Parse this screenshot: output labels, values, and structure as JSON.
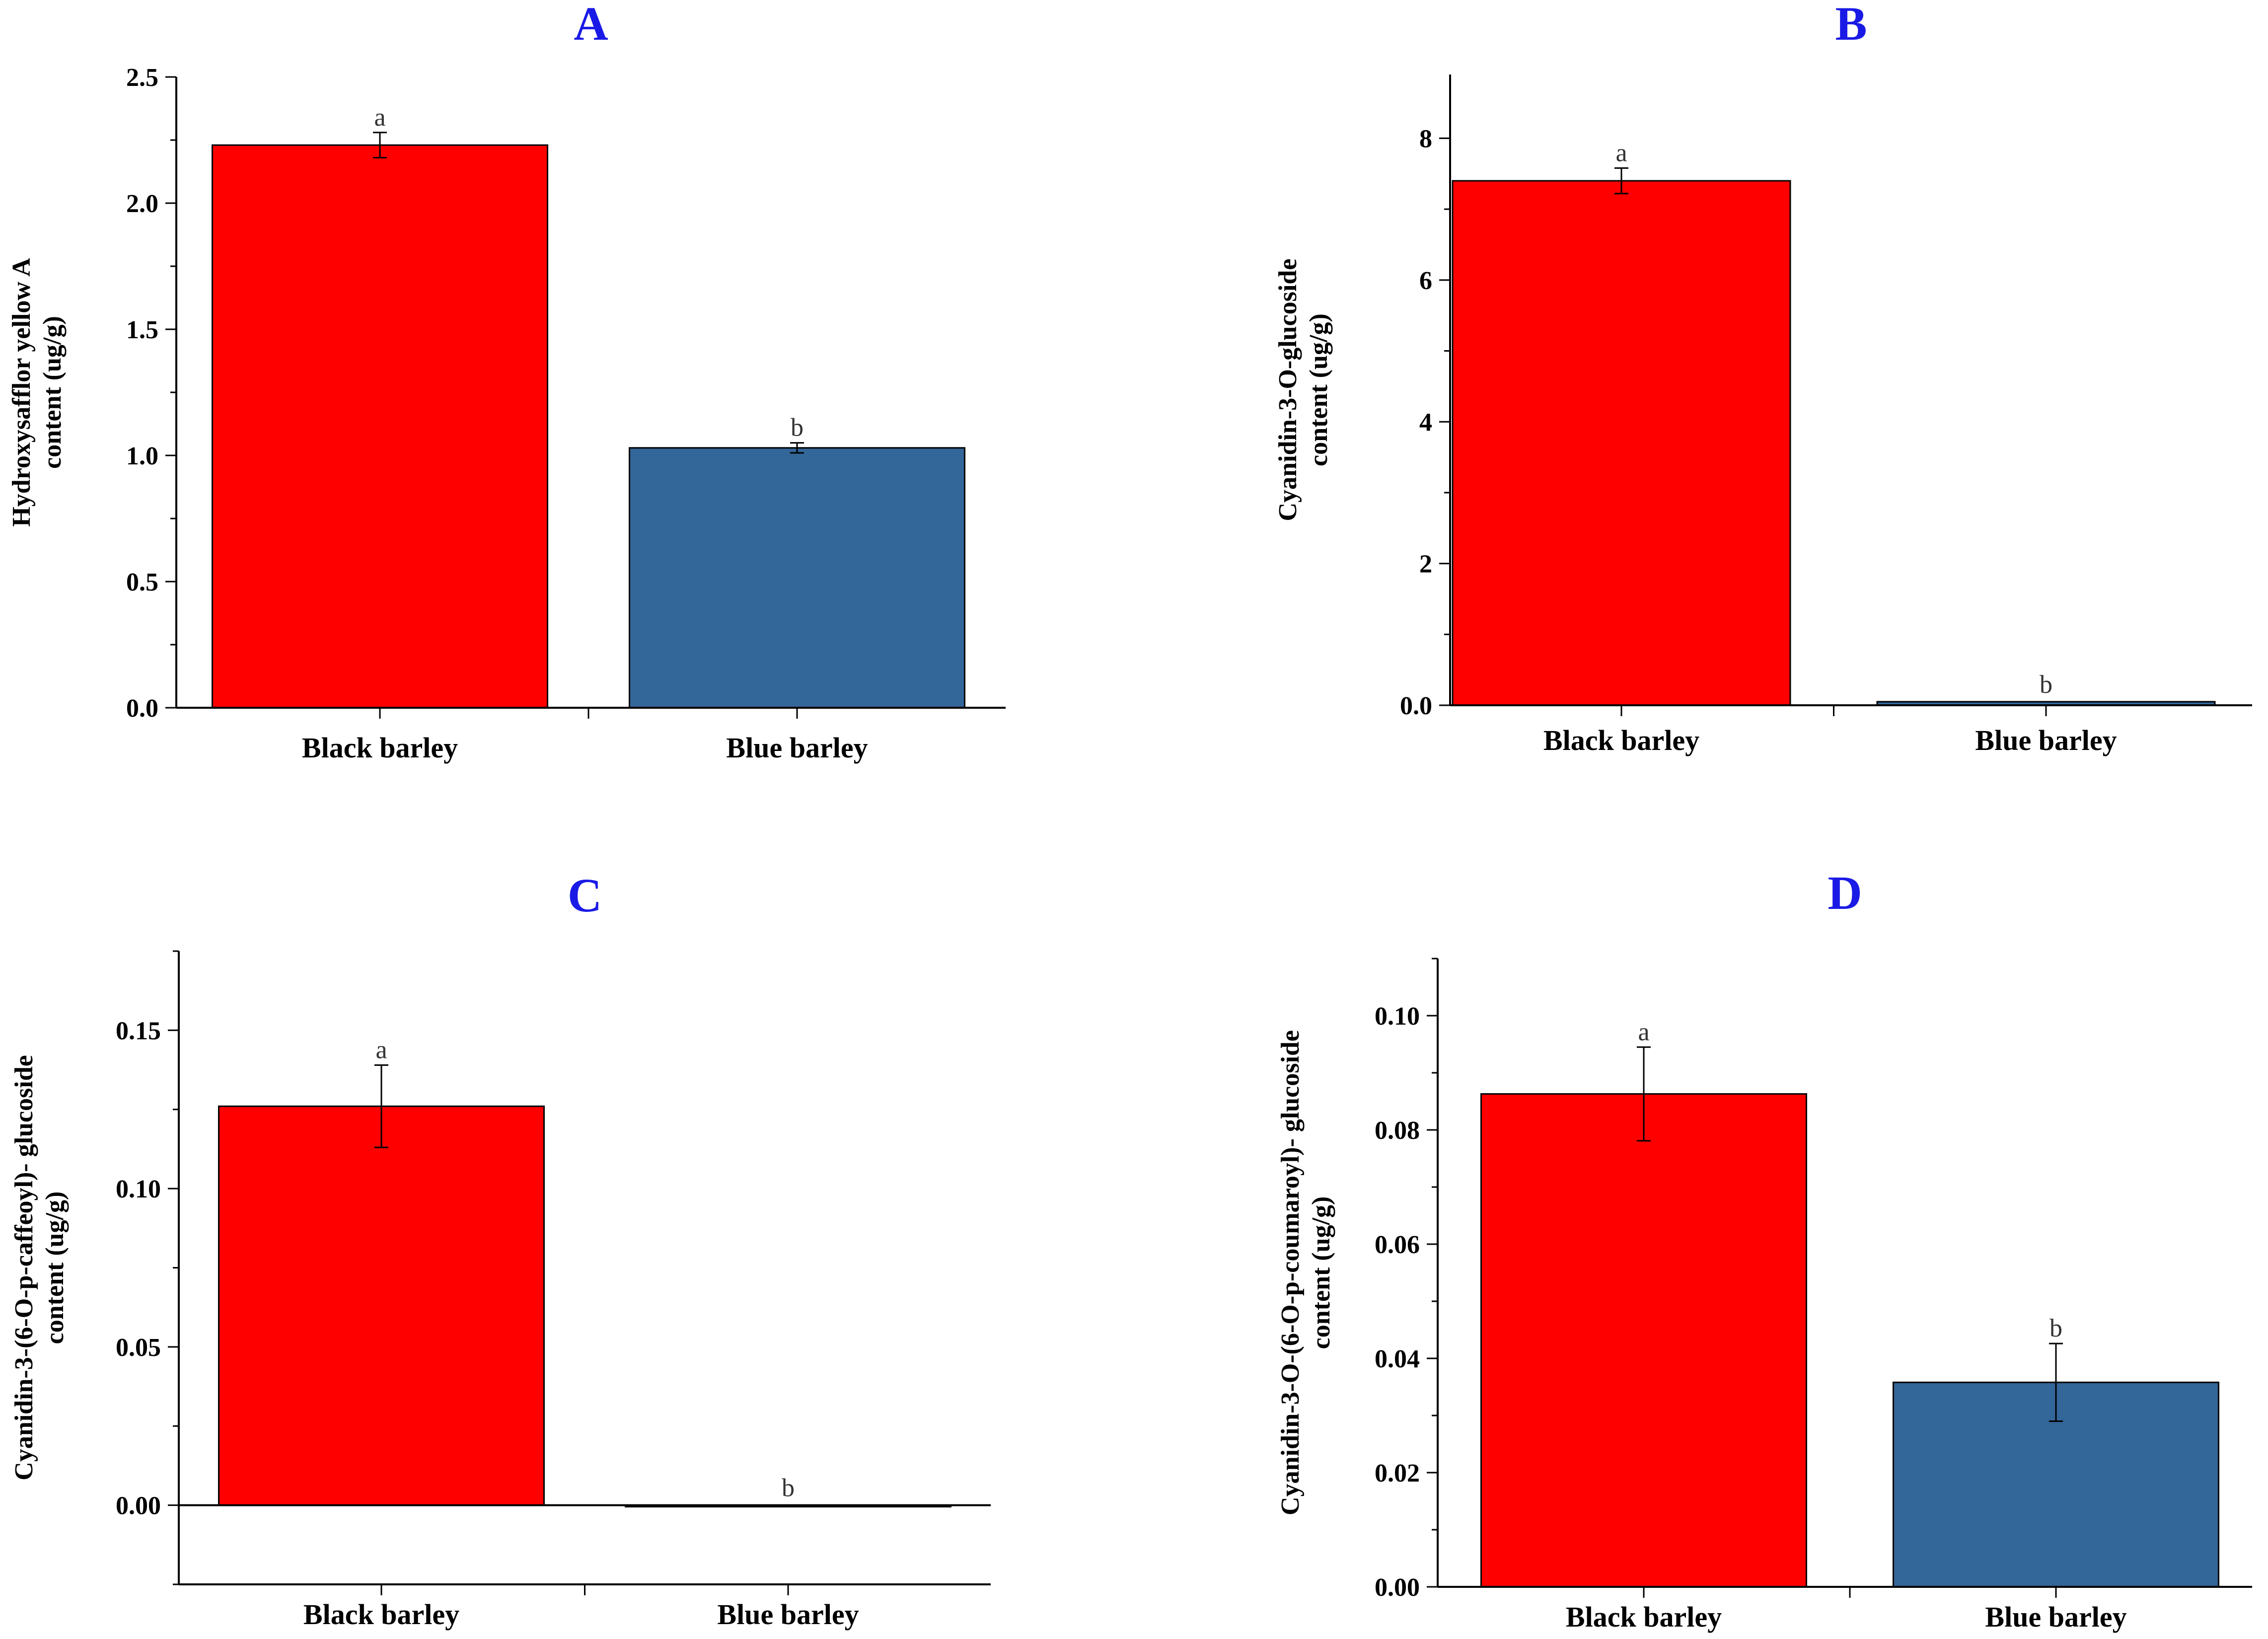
{
  "chart_data": [
    {
      "type": "bar",
      "title": "A",
      "ylabel": [
        "Hydroxysafflor yellow A",
        "content (ug/g)"
      ],
      "categories": [
        "Black barley",
        "Blue barley"
      ],
      "values": [
        2.23,
        1.03
      ],
      "errors": [
        0.05,
        0.02
      ],
      "significance": [
        "a",
        "b"
      ],
      "colors": [
        "#ff0000",
        "#336699"
      ],
      "ylim": [
        0,
        2.5
      ],
      "ticks": [
        "0.0",
        "0.5",
        "1.0",
        "1.5",
        "2.0",
        "2.5"
      ]
    },
    {
      "type": "bar",
      "title": "B",
      "ylabel": [
        "Cyanidin-3-O-glucoside",
        "content (ug/g)"
      ],
      "categories": [
        "Black barley",
        "Blue barley"
      ],
      "values": [
        7.4,
        0.05
      ],
      "errors": [
        0.18,
        0.0
      ],
      "significance": [
        "a",
        "b"
      ],
      "colors": [
        "#ff0000",
        "#336699"
      ],
      "ylim": [
        0,
        8.9
      ],
      "ticks": [
        "0.0",
        "2",
        "4",
        "6",
        "8"
      ]
    },
    {
      "type": "bar",
      "title": "C",
      "ylabel": [
        "Cyanidin-3-(6-O-p-caffeoyl)- glucoside",
        "content (ug/g)"
      ],
      "categories": [
        "Black barley",
        "Blue barley"
      ],
      "values": [
        0.126,
        0.0
      ],
      "errors": [
        0.013,
        0.0
      ],
      "significance": [
        "a",
        "b"
      ],
      "colors": [
        "#ff0000",
        "#336699"
      ],
      "ylim": [
        -0.025,
        0.175
      ],
      "ticks": [
        "0.00",
        "0.05",
        "0.10",
        "0.15"
      ]
    },
    {
      "type": "bar",
      "title": "D",
      "ylabel": [
        "Cyanidin-3-O-(6-O-p-coumaroyl)- glucoside",
        "content (ug/g)"
      ],
      "categories": [
        "Black barley",
        "Blue barley"
      ],
      "values": [
        0.0863,
        0.0358
      ],
      "errors": [
        0.0082,
        0.0068
      ],
      "significance": [
        "a",
        "b"
      ],
      "colors": [
        "#ff0000",
        "#336699"
      ],
      "ylim": [
        0,
        0.11
      ],
      "ticks": [
        "0.00",
        "0.02",
        "0.04",
        "0.06",
        "0.08",
        "0.10"
      ]
    }
  ]
}
